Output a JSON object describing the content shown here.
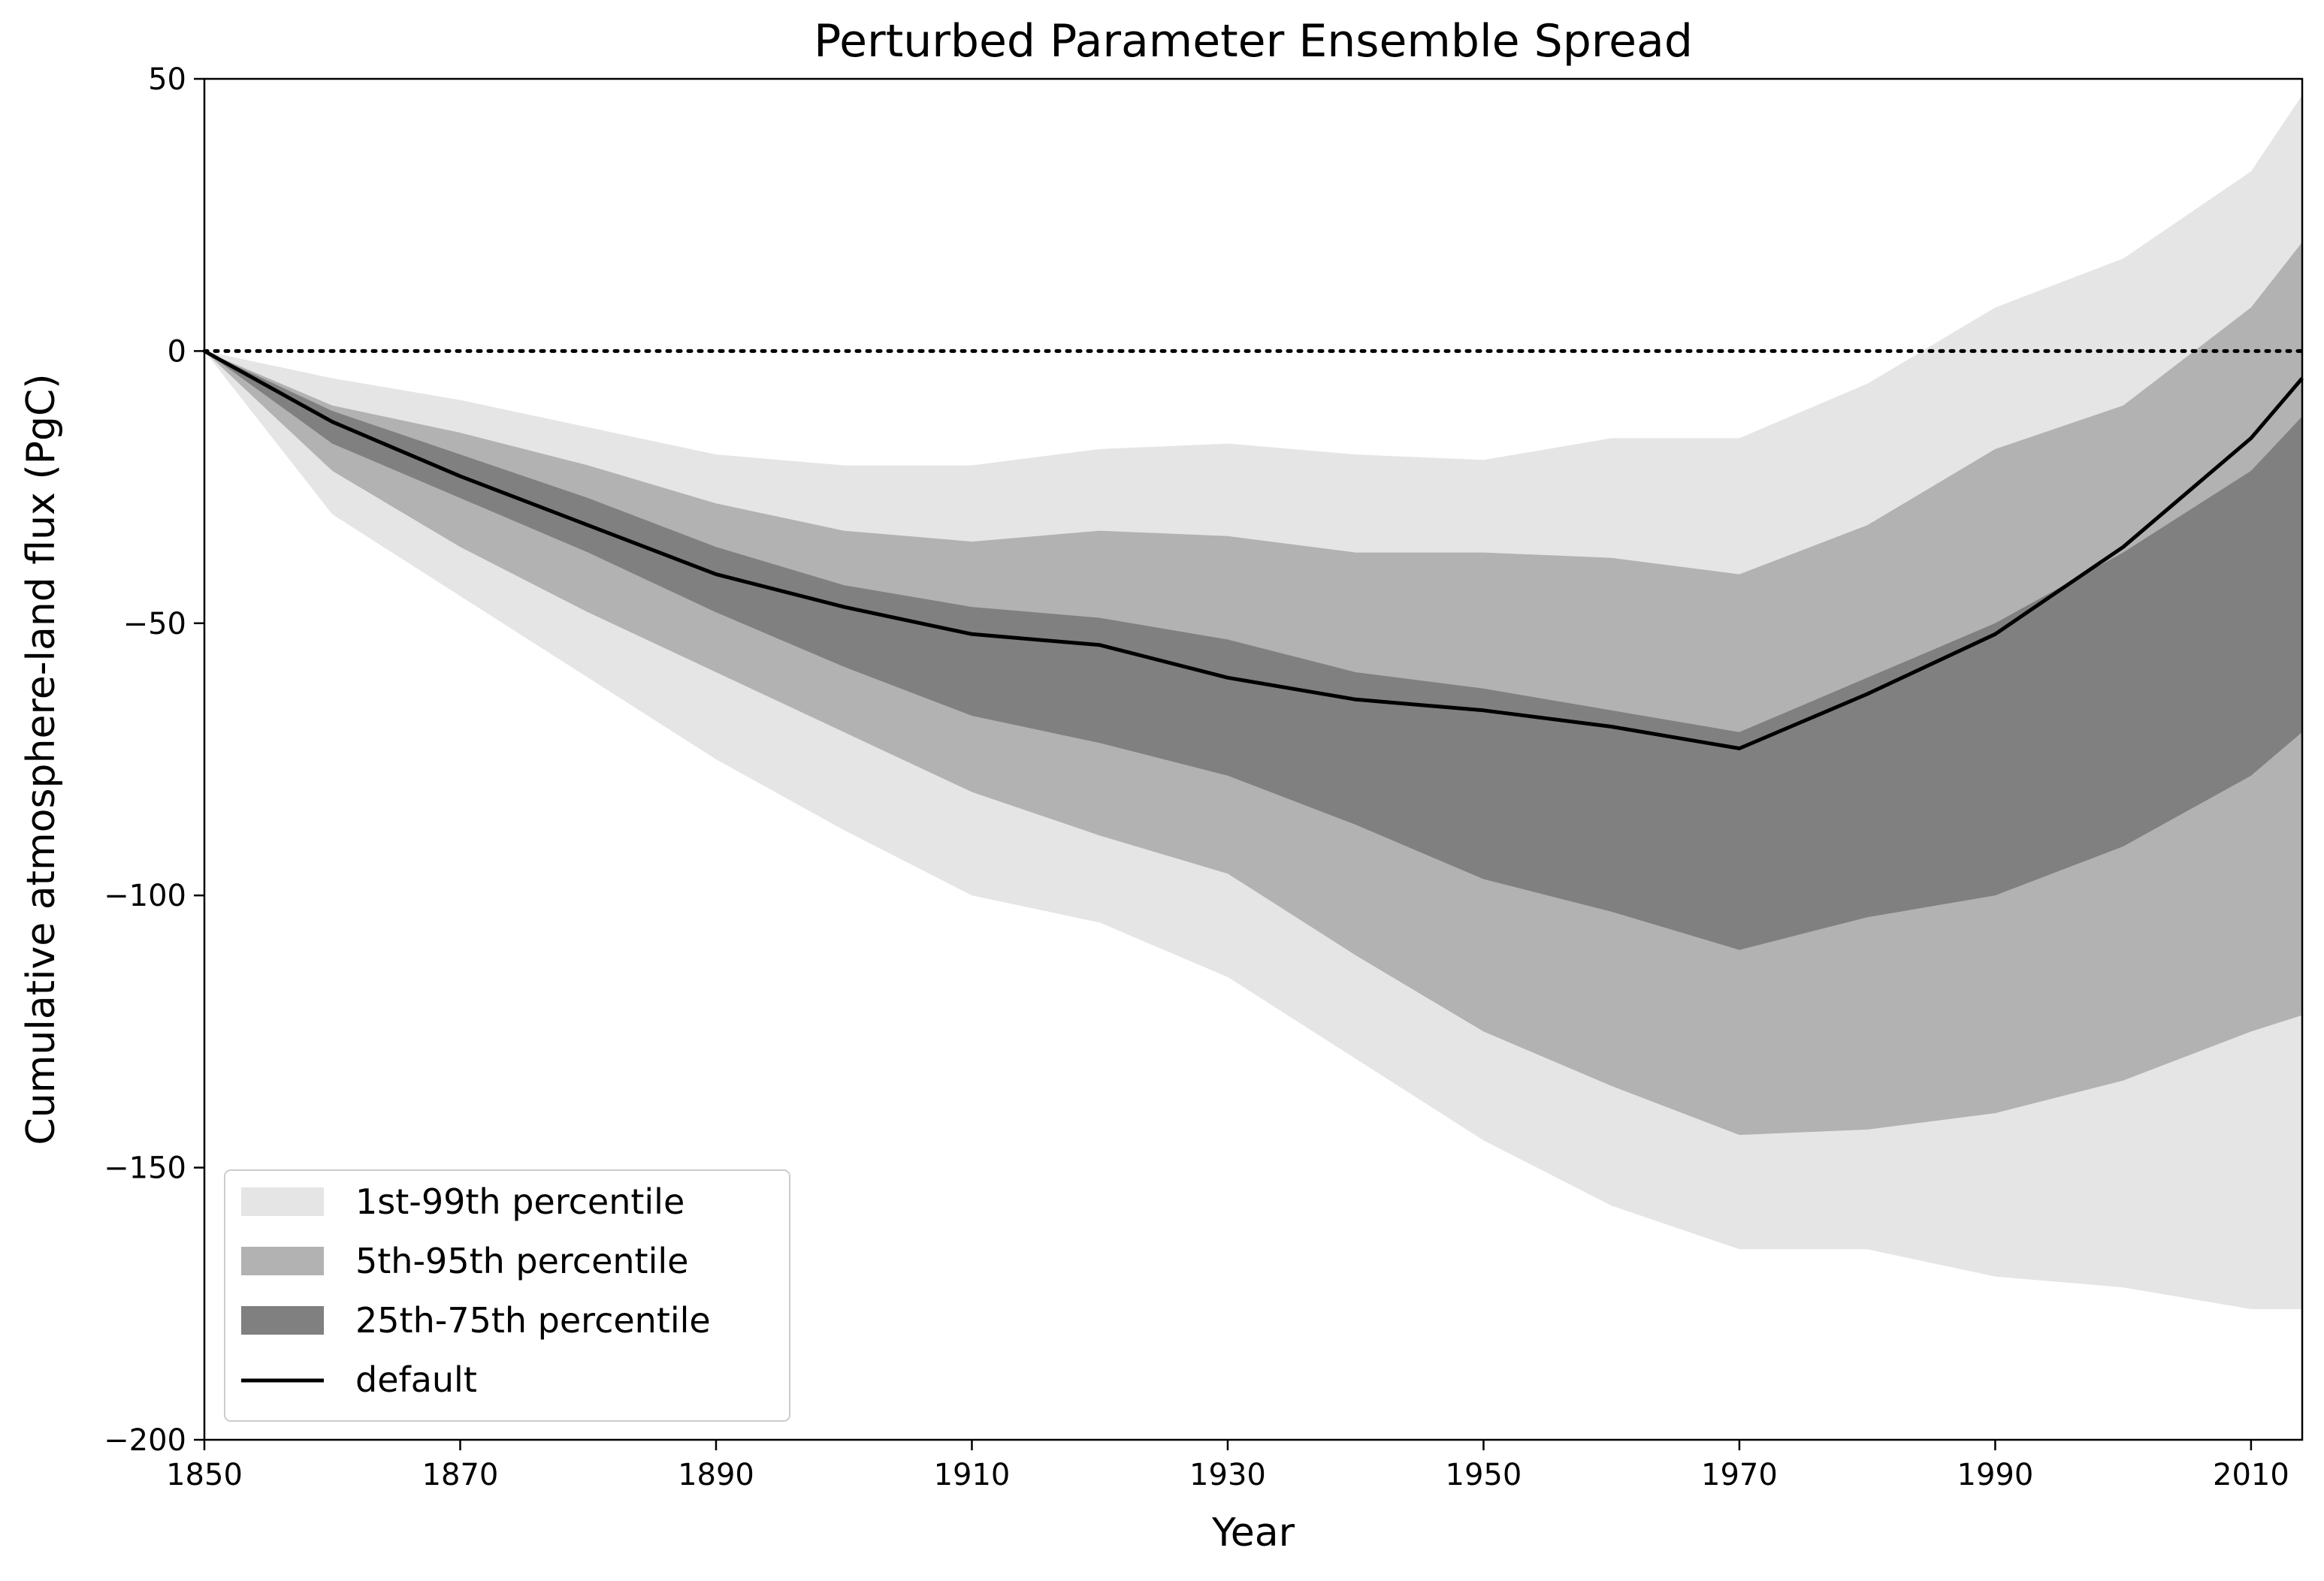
{
  "chart_data": {
    "type": "area",
    "title": "Perturbed Parameter Ensemble Spread",
    "xlabel": "Year",
    "ylabel": "Cumulative atmosphere-land flux (PgC)",
    "xlim": [
      1850,
      2014
    ],
    "ylim": [
      -200,
      50
    ],
    "xticks": [
      1850,
      1870,
      1890,
      1910,
      1930,
      1950,
      1970,
      1990,
      2010
    ],
    "yticks": [
      50,
      0,
      -50,
      -100,
      -150,
      -200
    ],
    "ytick_labels": [
      "50",
      "0",
      "−50",
      "−100",
      "−150",
      "−200"
    ],
    "grid": false,
    "legend_position": "lower-left",
    "reference_line": {
      "y": 0,
      "style": "dotted",
      "color": "#000000"
    },
    "x": [
      1850,
      1860,
      1870,
      1880,
      1890,
      1900,
      1910,
      1920,
      1930,
      1940,
      1950,
      1960,
      1970,
      1980,
      1990,
      2000,
      2010,
      2014
    ],
    "bands": [
      {
        "name": "1st-99th percentile",
        "color": "#e5e5e5",
        "lower": [
          0,
          -30,
          -45,
          -60,
          -75,
          -88,
          -100,
          -105,
          -115,
          -130,
          -145,
          -157,
          -165,
          -165,
          -170,
          -172,
          -176,
          -176
        ],
        "upper": [
          0,
          -5,
          -9,
          -14,
          -19,
          -21,
          -21,
          -18,
          -17,
          -19,
          -20,
          -16,
          -16,
          -6,
          8,
          17,
          33,
          47
        ]
      },
      {
        "name": "5th-95th percentile",
        "color": "#b2b2b2",
        "lower": [
          0,
          -22,
          -36,
          -48,
          -59,
          -70,
          -81,
          -89,
          -96,
          -111,
          -125,
          -135,
          -144,
          -143,
          -140,
          -134,
          -125,
          -122
        ],
        "upper": [
          0,
          -10,
          -15,
          -21,
          -28,
          -33,
          -35,
          -33,
          -34,
          -37,
          -37,
          -38,
          -41,
          -32,
          -18,
          -10,
          8,
          20
        ]
      },
      {
        "name": "25th-75th percentile",
        "color": "#808080",
        "lower": [
          0,
          -17,
          -27,
          -37,
          -48,
          -58,
          -67,
          -72,
          -78,
          -87,
          -97,
          -103,
          -110,
          -104,
          -100,
          -91,
          -78,
          -70
        ],
        "upper": [
          0,
          -11,
          -19,
          -27,
          -36,
          -43,
          -47,
          -49,
          -53,
          -59,
          -62,
          -66,
          -70,
          -60,
          -50,
          -37,
          -22,
          -12
        ]
      }
    ],
    "series": [
      {
        "name": "default",
        "color": "#000000",
        "values": [
          0,
          -13,
          -23,
          -32,
          -41,
          -47,
          -52,
          -54,
          -60,
          -64,
          -66,
          -69,
          -73,
          -63,
          -52,
          -36,
          -16,
          -5
        ]
      }
    ]
  }
}
